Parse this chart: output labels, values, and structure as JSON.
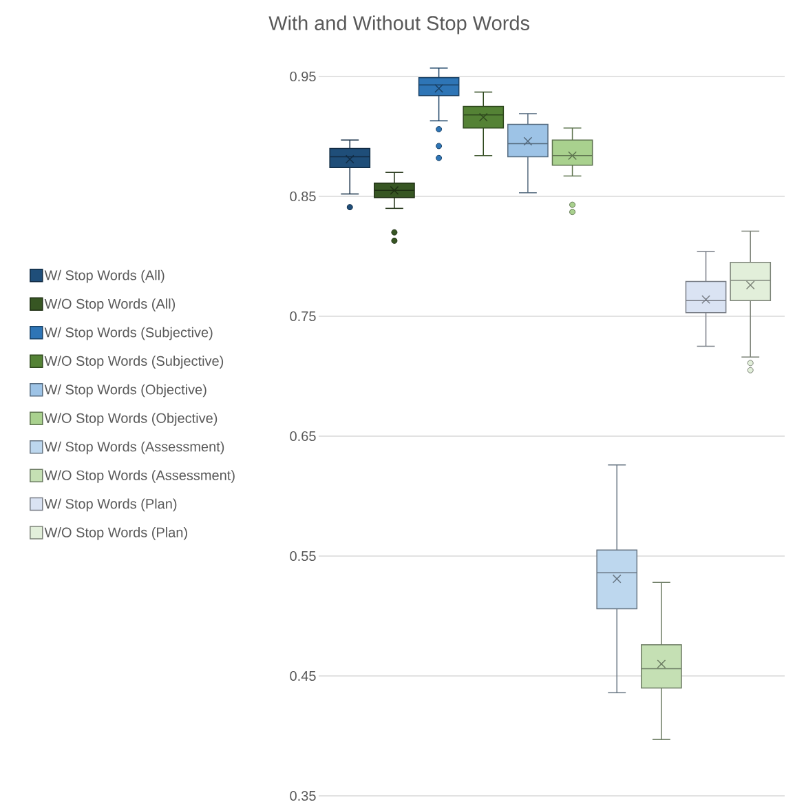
{
  "chart_data": {
    "type": "box",
    "title": "With and Without Stop Words",
    "categories": [
      null
    ],
    "ylim": [
      0.35,
      0.95
    ],
    "yticks": [
      0.35,
      0.45,
      0.55,
      0.65,
      0.75,
      0.85,
      0.95
    ],
    "grid": "y",
    "legend": "left",
    "series": [
      {
        "name": "W/ Stop Words (All)",
        "color": "#1f4e79",
        "boxes": [
          {
            "low": 0.852,
            "q1": 0.874,
            "median": 0.883,
            "q3": 0.89,
            "high": 0.897,
            "mean": 0.881,
            "outliers": [
              0.841
            ]
          }
        ]
      },
      {
        "name": "W/O Stop Words (All)",
        "color": "#375623",
        "boxes": [
          {
            "low": 0.84,
            "q1": 0.849,
            "median": 0.855,
            "q3": 0.861,
            "high": 0.87,
            "mean": 0.855,
            "outliers": [
              0.82,
              0.813
            ]
          }
        ]
      },
      {
        "name": "W/ Stop Words (Subjective)",
        "color": "#2e75b6",
        "boxes": [
          {
            "low": 0.913,
            "q1": 0.934,
            "median": 0.943,
            "q3": 0.949,
            "high": 0.957,
            "mean": 0.94,
            "outliers": [
              0.906,
              0.892,
              0.882
            ]
          }
        ]
      },
      {
        "name": "W/O Stop Words (Subjective)",
        "color": "#548235",
        "boxes": [
          {
            "low": 0.884,
            "q1": 0.907,
            "median": 0.918,
            "q3": 0.925,
            "high": 0.937,
            "mean": 0.916
          }
        ]
      },
      {
        "name": "W/ Stop Words (Objective)",
        "color": "#9dc3e6",
        "boxes": [
          {
            "low": 0.853,
            "q1": 0.883,
            "median": 0.894,
            "q3": 0.91,
            "high": 0.919,
            "mean": 0.896
          }
        ]
      },
      {
        "name": "W/O Stop Words (Objective)",
        "color": "#a9d18e",
        "boxes": [
          {
            "low": 0.867,
            "q1": 0.876,
            "median": 0.884,
            "q3": 0.897,
            "high": 0.907,
            "mean": 0.884,
            "outliers": [
              0.843,
              0.837
            ]
          }
        ]
      },
      {
        "name": "W/ Stop Words (Assessment)",
        "color": "#bdd7ee",
        "boxes": [
          {
            "low": 0.436,
            "q1": 0.506,
            "median": 0.536,
            "q3": 0.555,
            "high": 0.626,
            "mean": 0.531
          }
        ]
      },
      {
        "name": "W/O Stop Words (Assessment)",
        "color": "#c5e0b4",
        "boxes": [
          {
            "low": 0.397,
            "q1": 0.44,
            "median": 0.456,
            "q3": 0.476,
            "high": 0.528,
            "mean": 0.46
          }
        ]
      },
      {
        "name": "W/ Stop Words (Plan)",
        "color": "#dae3f3",
        "boxes": [
          {
            "low": 0.725,
            "q1": 0.753,
            "median": 0.763,
            "q3": 0.779,
            "high": 0.804,
            "mean": 0.764
          }
        ]
      },
      {
        "name": "W/O Stop Words (Plan)",
        "color": "#e2efda",
        "boxes": [
          {
            "low": 0.716,
            "q1": 0.763,
            "median": 0.78,
            "q3": 0.795,
            "high": 0.821,
            "mean": 0.776,
            "outliers": [
              0.711,
              0.705
            ]
          }
        ]
      }
    ]
  }
}
